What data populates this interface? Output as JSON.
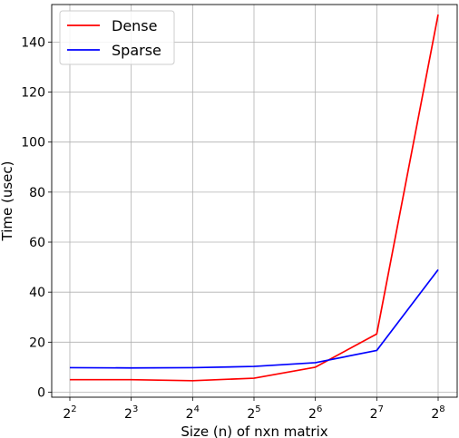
{
  "chart_data": {
    "type": "line",
    "title": "",
    "xlabel": "Size (n) of nxn matrix",
    "ylabel": "Time (usec)",
    "x_scale": "log2",
    "x": [
      4,
      8,
      16,
      32,
      64,
      128,
      256
    ],
    "x_tick_base": "2",
    "x_tick_exponents": [
      "2",
      "3",
      "4",
      "5",
      "6",
      "7",
      "8"
    ],
    "y_ticks": [
      0,
      20,
      40,
      60,
      80,
      100,
      120,
      140
    ],
    "ylim": [
      -2,
      155
    ],
    "grid": true,
    "legend_position": "top-left",
    "series": [
      {
        "name": "Dense",
        "color": "#ff0000",
        "values": [
          5,
          5,
          4.6,
          5.6,
          10,
          23.3,
          151
        ]
      },
      {
        "name": "Sparse",
        "color": "#0000ff",
        "values": [
          9.8,
          9.7,
          9.8,
          10.3,
          11.8,
          16.7,
          49
        ]
      }
    ]
  }
}
